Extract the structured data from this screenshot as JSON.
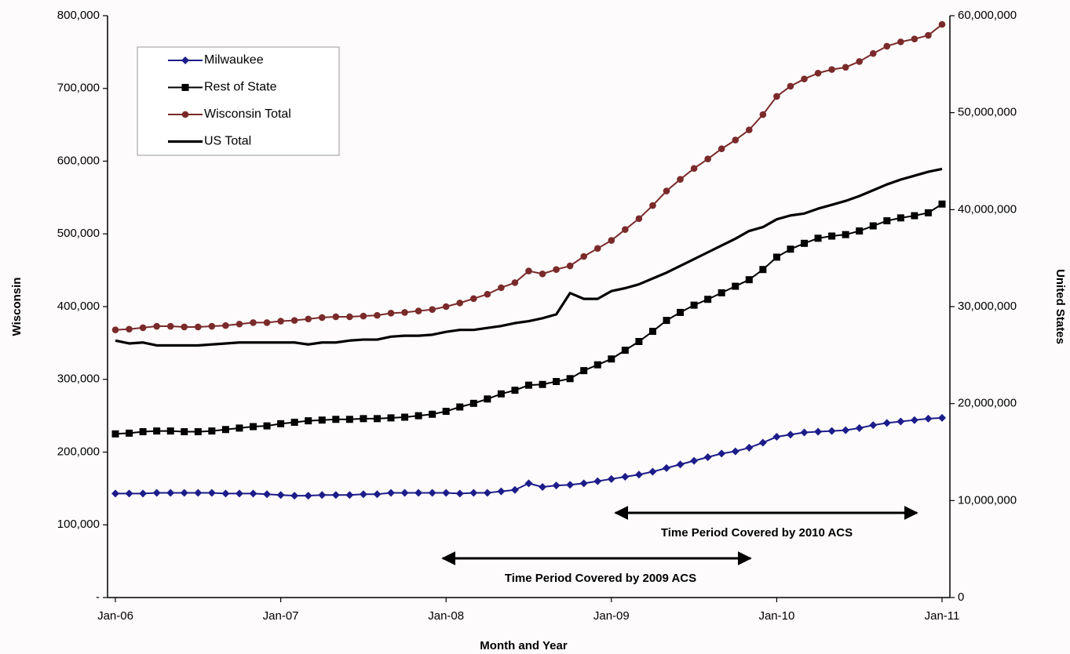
{
  "chart_data": {
    "type": "line",
    "y_axis_label": "Wisconsin",
    "y2_axis_label": "United States",
    "x_axis_label": "Month and Year",
    "annotations": [
      "Time Period Covered by 2010 ACS",
      "Time Period Covered by 2009 ACS"
    ],
    "categories": [
      "Jan-06",
      null,
      null,
      null,
      null,
      null,
      null,
      null,
      null,
      null,
      null,
      null,
      "Jan-07",
      null,
      null,
      null,
      null,
      null,
      null,
      null,
      null,
      null,
      null,
      null,
      "Jan-08",
      null,
      null,
      null,
      null,
      null,
      null,
      null,
      null,
      null,
      null,
      null,
      "Jan-09",
      null,
      null,
      null,
      null,
      null,
      null,
      null,
      null,
      null,
      null,
      null,
      "Jan-10",
      null,
      null,
      null,
      null,
      null,
      null,
      null,
      null,
      null,
      null,
      null,
      "Jan-11"
    ],
    "ylim": [
      0,
      800000
    ],
    "yticks": [
      {
        "value": 0,
        "label": "-"
      },
      {
        "value": 100000,
        "label": "100,000"
      },
      {
        "value": 200000,
        "label": "200,000"
      },
      {
        "value": 300000,
        "label": "300,000"
      },
      {
        "value": 400000,
        "label": "400,000"
      },
      {
        "value": 500000,
        "label": "500,000"
      },
      {
        "value": 600000,
        "label": "600,000"
      },
      {
        "value": 700000,
        "label": "700,000"
      },
      {
        "value": 800000,
        "label": "800,000"
      }
    ],
    "y2lim": [
      0,
      60000000
    ],
    "y2ticks": [
      0,
      {
        "value": 10000000,
        "label": "10,000,000"
      },
      {
        "value": 20000000,
        "label": "20,000,000"
      },
      {
        "value": 30000000,
        "label": "30,000,000"
      },
      {
        "value": 40000000,
        "label": "40,000,000"
      },
      {
        "value": 50000000,
        "label": "50,000,000"
      },
      {
        "value": 60000000,
        "label": "60,000,000"
      }
    ],
    "series": [
      {
        "name": "Milwaukee",
        "color": "#1c1c8a",
        "marker": "diamond",
        "values": [
          143000,
          143000,
          143000,
          144000,
          144000,
          144000,
          144000,
          144000,
          143000,
          143000,
          143000,
          142000,
          141000,
          140000,
          140000,
          141000,
          141000,
          141000,
          142000,
          142000,
          144000,
          144000,
          144000,
          144000,
          144000,
          143000,
          144000,
          144000,
          146000,
          148000,
          157000,
          152000,
          154000,
          155000,
          157000,
          160000,
          163000,
          166000,
          169000,
          173000,
          178000,
          183000,
          188000,
          193000,
          198000,
          201000,
          206000,
          213000,
          221000,
          224000,
          227000,
          228000,
          229000,
          230000,
          233000,
          237000,
          240000,
          242000,
          244000,
          246000,
          247000
        ]
      },
      {
        "name": "Rest of State",
        "color": "#000000",
        "marker": "square",
        "values": [
          225000,
          226000,
          228000,
          229000,
          229000,
          228000,
          228000,
          229000,
          231000,
          233000,
          235000,
          236000,
          239000,
          241000,
          243000,
          244000,
          245000,
          245000,
          246000,
          246000,
          247000,
          248000,
          250000,
          252000,
          256000,
          262000,
          267000,
          273000,
          280000,
          285000,
          292000,
          293000,
          297000,
          301000,
          312000,
          320000,
          328000,
          340000,
          352000,
          366000,
          381000,
          392000,
          402000,
          410000,
          419000,
          428000,
          437000,
          451000,
          468000,
          479000,
          487000,
          494000,
          497000,
          499000,
          504000,
          511000,
          518000,
          522000,
          525000,
          529000,
          541000
        ]
      },
      {
        "name": "Wisconsin Total",
        "color": "#7a2a2a",
        "marker": "circle",
        "values": [
          368000,
          369000,
          371000,
          373000,
          373000,
          372000,
          372000,
          373000,
          374000,
          376000,
          378000,
          378000,
          380000,
          381000,
          383000,
          385000,
          386000,
          386000,
          387000,
          388000,
          391000,
          392000,
          394000,
          396000,
          400000,
          405000,
          411000,
          417000,
          426000,
          433000,
          449000,
          445000,
          451000,
          456000,
          469000,
          480000,
          491000,
          506000,
          521000,
          539000,
          559000,
          575000,
          590000,
          603000,
          617000,
          629000,
          643000,
          664000,
          689000,
          703000,
          713000,
          721000,
          726000,
          729000,
          737000,
          748000,
          758000,
          764000,
          768000,
          773000,
          788000
        ]
      },
      {
        "name": "US Total",
        "color": "#000000",
        "axis": "y2",
        "values": [
          26500000,
          26200000,
          26300000,
          26000000,
          26000000,
          26000000,
          26000000,
          26100000,
          26200000,
          26300000,
          26300000,
          26300000,
          26300000,
          26300000,
          26100000,
          26300000,
          26300000,
          26500000,
          26600000,
          26600000,
          26900000,
          27000000,
          27000000,
          27100000,
          27400000,
          27600000,
          27600000,
          27800000,
          28000000,
          28300000,
          28500000,
          28800000,
          29200000,
          31400000,
          30800000,
          30800000,
          31600000,
          31900000,
          32300000,
          32900000,
          33500000,
          34200000,
          34900000,
          35600000,
          36300000,
          37000000,
          37800000,
          38200000,
          39000000,
          39400000,
          39600000,
          40100000,
          40500000,
          40900000,
          41400000,
          42000000,
          42600000,
          43100000,
          43500000,
          43900000,
          44200000
        ]
      }
    ]
  }
}
